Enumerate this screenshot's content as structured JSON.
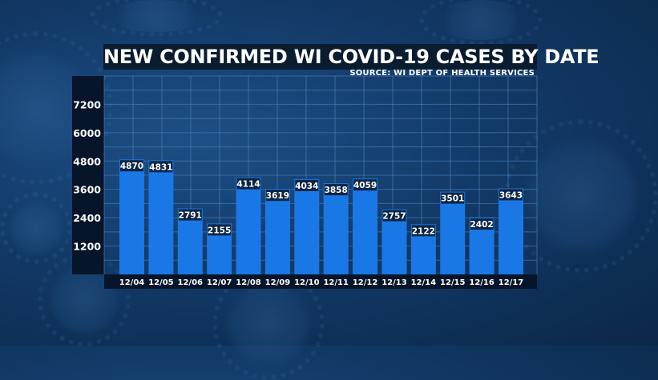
{
  "chart_data": {
    "type": "bar",
    "title": "NEW CONFIRMED WI COVID-19 CASES BY DATE",
    "source": "SOURCE: WI DEPT OF HEALTH SERVICES",
    "categories": [
      "12/04",
      "12/05",
      "12/06",
      "12/07",
      "12/08",
      "12/09",
      "12/10",
      "12/11",
      "12/12",
      "12/13",
      "12/14",
      "12/15",
      "12/16",
      "12/17"
    ],
    "values": [
      4870,
      4831,
      2791,
      2155,
      4114,
      3619,
      4034,
      3858,
      4059,
      2757,
      2122,
      3501,
      2402,
      3643
    ],
    "ylim": [
      0,
      8400
    ],
    "yticks": [
      1200,
      2400,
      3600,
      4800,
      6000,
      7200
    ],
    "ytick_labels": [
      "1200",
      "2400",
      "3600",
      "4800",
      "6000",
      "7200"
    ],
    "grid": true
  },
  "colors": {
    "bar": "#1a78e6",
    "label_box": "#0b2545",
    "panel": "#07152a",
    "title_bg": "#0a1c30",
    "grid": "#4d86c4"
  }
}
